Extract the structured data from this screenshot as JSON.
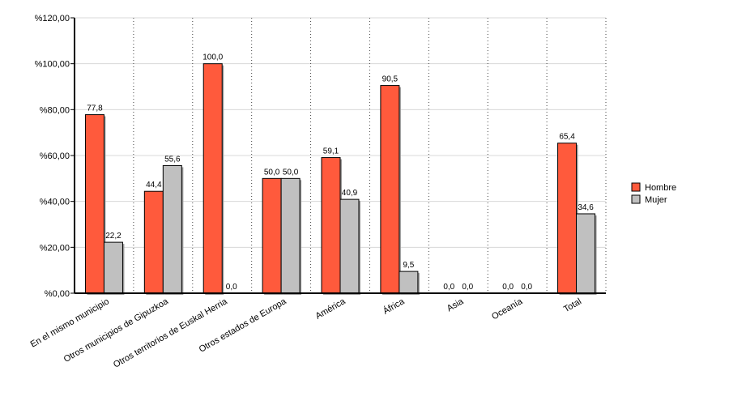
{
  "chart_data": {
    "type": "bar",
    "categories": [
      "En el mismo municipio",
      "Otros municipios de Gipuzkoa",
      "Otros territorios de Euskal Herria",
      "Otros estados de Europa",
      "América",
      "África",
      "Asia",
      "Oceanía",
      "Total"
    ],
    "series": [
      {
        "name": "Hombre",
        "color": "#ff5a3c",
        "values": [
          77.8,
          44.4,
          100.0,
          50.0,
          59.1,
          90.5,
          0.0,
          0.0,
          65.4
        ]
      },
      {
        "name": "Mujer",
        "color": "#c0c0c0",
        "values": [
          22.2,
          55.6,
          0.0,
          50.0,
          40.9,
          9.5,
          0.0,
          0.0,
          34.6
        ]
      }
    ],
    "data_labels": [
      [
        "77,8",
        "44,4",
        "100,0",
        "50,0",
        "59,1",
        "90,5",
        "0,0",
        "0,0",
        "65,4"
      ],
      [
        "22,2",
        "55,6",
        "0,0",
        "50,0",
        "40,9",
        "9,5",
        "0,0",
        "0,0",
        "34,6"
      ]
    ],
    "yticks": [
      0,
      20,
      40,
      60,
      80,
      100,
      120
    ],
    "ytick_labels": [
      "%0,00",
      "%20,00",
      "%40,00",
      "%60,00",
      "%80,00",
      "%100,00",
      "%120,00"
    ],
    "ylim": [
      0,
      120
    ],
    "legend_position": "right",
    "grid": true
  }
}
